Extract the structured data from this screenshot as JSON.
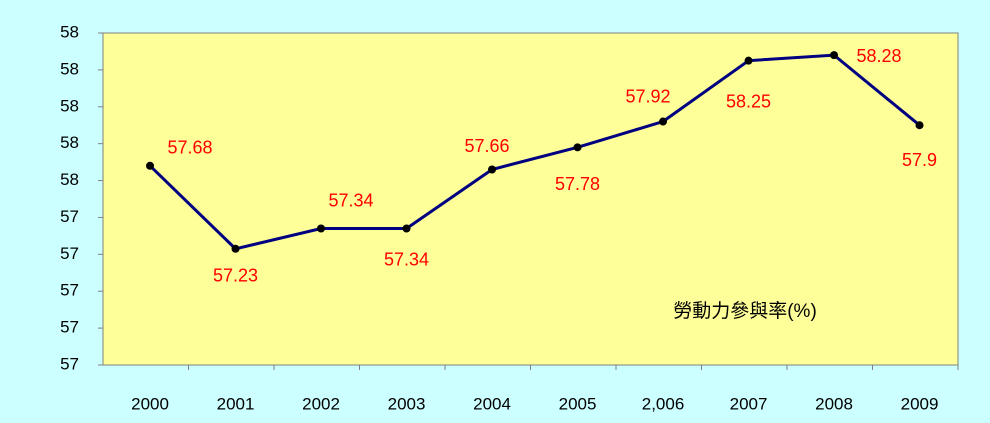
{
  "chart_data": {
    "type": "line",
    "categories": [
      "2000",
      "2001",
      "2002",
      "2003",
      "2004",
      "2005",
      "2,006",
      "2007",
      "2008",
      "2009"
    ],
    "series": [
      {
        "name": "勞動力參與率(%)",
        "color": "#000080",
        "values": [
          57.68,
          57.23,
          57.34,
          57.34,
          57.66,
          57.78,
          57.92,
          58.25,
          58.28,
          57.9
        ]
      }
    ],
    "annotation": "勞動力參與率(%)",
    "ylim": [
      56.6,
      58.4
    ],
    "yticks": [
      {
        "value": 56.6,
        "label": "57"
      },
      {
        "value": 56.8,
        "label": "57"
      },
      {
        "value": 57.0,
        "label": "57"
      },
      {
        "value": 57.2,
        "label": "57"
      },
      {
        "value": 57.4,
        "label": "57"
      },
      {
        "value": 57.6,
        "label": "58"
      },
      {
        "value": 57.8,
        "label": "58"
      },
      {
        "value": 58.0,
        "label": "58"
      },
      {
        "value": 58.2,
        "label": "58"
      },
      {
        "value": 58.4,
        "label": "58"
      }
    ],
    "grid": false
  }
}
